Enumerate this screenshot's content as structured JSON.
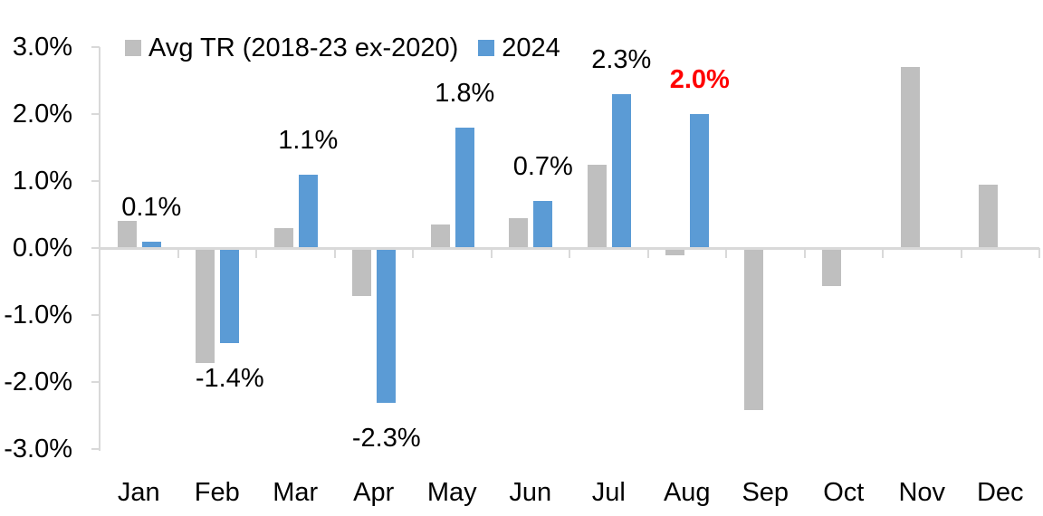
{
  "legend": {
    "series1_label": "Avg TR (2018-23 ex-2020)",
    "series2_label": "2024"
  },
  "colors": {
    "avg_series": "#BFBFBF",
    "series_2024": "#5B9BD5",
    "axis": "#D9D9D9",
    "label_text": "#000000",
    "label_highlight": "#FF0000"
  },
  "chart_data": {
    "type": "bar",
    "title": "",
    "categories": [
      "Jan",
      "Feb",
      "Mar",
      "Apr",
      "May",
      "Jun",
      "Jul",
      "Aug",
      "Sep",
      "Oct",
      "Nov",
      "Dec"
    ],
    "series": [
      {
        "name": "Avg TR (2018-23 ex-2020)",
        "color_key": "avg_series",
        "values": [
          0.4,
          -1.7,
          0.3,
          -0.7,
          0.35,
          0.45,
          1.25,
          -0.1,
          -2.4,
          -0.55,
          2.7,
          0.95
        ]
      },
      {
        "name": "2024",
        "color_key": "series_2024",
        "values": [
          0.1,
          -1.4,
          1.1,
          -2.3,
          1.8,
          0.7,
          2.3,
          2.0,
          null,
          null,
          null,
          null
        ]
      }
    ],
    "data_labels": [
      {
        "month_index": 0,
        "text": "0.1%",
        "position": "above",
        "color": "#000000",
        "bold": false
      },
      {
        "month_index": 1,
        "text": "-1.4%",
        "position": "below",
        "color": "#000000",
        "bold": false
      },
      {
        "month_index": 2,
        "text": "1.1%",
        "position": "above",
        "color": "#000000",
        "bold": false
      },
      {
        "month_index": 3,
        "text": "-2.3%",
        "position": "below",
        "color": "#000000",
        "bold": false
      },
      {
        "month_index": 4,
        "text": "1.8%",
        "position": "above",
        "color": "#000000",
        "bold": false
      },
      {
        "month_index": 5,
        "text": "0.7%",
        "position": "above",
        "color": "#000000",
        "bold": false
      },
      {
        "month_index": 6,
        "text": "2.3%",
        "position": "above",
        "color": "#000000",
        "bold": false
      },
      {
        "month_index": 7,
        "text": "2.0%",
        "position": "above",
        "color": "#FF0000",
        "bold": true
      }
    ],
    "y_axis": {
      "tick_labels": [
        "3.0%",
        "2.0%",
        "1.0%",
        "0.0%",
        "-1.0%",
        "-2.0%",
        "-3.0%"
      ],
      "min": -3.0,
      "max": 3.0,
      "unit": "%",
      "grid": false
    },
    "legend_position": "top"
  }
}
